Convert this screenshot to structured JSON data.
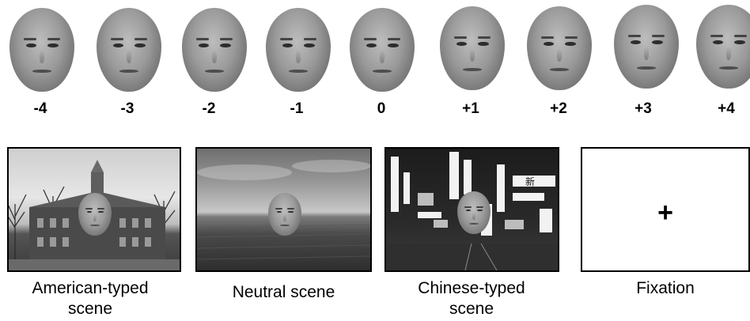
{
  "morph_levels": [
    "-4",
    "-3",
    "-2",
    "-1",
    "0",
    "+1",
    "+2",
    "+3",
    "+4"
  ],
  "scenes": {
    "american": {
      "caption_line1": "American-typed",
      "caption_line2": "scene"
    },
    "neutral": {
      "caption_line1": "Neutral scene"
    },
    "chinese": {
      "caption_line1": "Chinese-typed",
      "caption_line2": "scene"
    },
    "fixation": {
      "caption_line1": "Fixation",
      "symbol": "+"
    }
  },
  "chinese_sign_text": "新"
}
